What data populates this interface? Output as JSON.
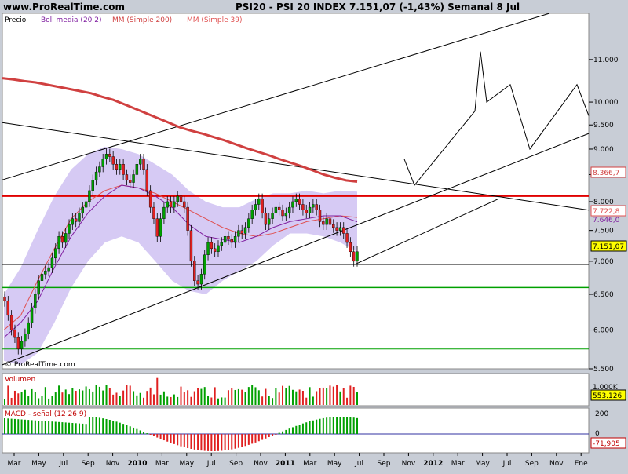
{
  "site_header": "www.ProRealTime.com",
  "title": "PSI20 - PSI 20 INDEX    7.151,07 (-1,43%)    Semanal  8 Jul",
  "legend": {
    "price": "Precio",
    "boll": "Boll media (20 2)",
    "ma200": "MM (Simple 200)",
    "ma39": "MM (Simple 39)"
  },
  "watermark": "© ProRealTime.com",
  "price_tags": {
    "ma200": "8.366,7",
    "ma39": "7.722,8",
    "boll_mid": "7.646,0",
    "last": "7.151,07"
  },
  "volume": {
    "label": "Volumen",
    "axis_label": "1.000K",
    "last": "553.126"
  },
  "macd": {
    "label": "MACD - señal (12 26 9)",
    "axis_top": "200",
    "axis_zero": "0",
    "last": "-71,905"
  },
  "y_ticks": [
    "11.000",
    "10.000",
    "9.500",
    "9.000",
    "8.500",
    "8.000",
    "7.500",
    "7.000",
    "6.500",
    "6.000",
    "5.500"
  ],
  "x_ticks": [
    "Mar",
    "May",
    "Jul",
    "Sep",
    "Nov",
    "2010",
    "Mar",
    "May",
    "Jul",
    "Sep",
    "Nov",
    "2011",
    "Mar",
    "May",
    "Jul",
    "Sep",
    "Nov",
    "2012",
    "Mar",
    "May",
    "Jul",
    "Sep",
    "Nov",
    "Ene"
  ],
  "colors": {
    "up": "#00a000",
    "down": "#e02020",
    "ma200": "#d04040",
    "ma39": "#e05050",
    "boll_mid": "#8020a0",
    "boll_band": "#c8b8f0",
    "support": "#00a000",
    "resistance": "#e00000",
    "background": "#ffffff",
    "frame": "#c8cdd6"
  },
  "chart_data": {
    "type": "candlestick",
    "timeframe": "weekly",
    "price_scale": "log",
    "ylim": [
      5500,
      12200
    ],
    "x_range": [
      "2009-02",
      "2013-02"
    ],
    "last_close": 7151.07,
    "change_pct": -1.43,
    "horizontal_levels": [
      8100,
      6950,
      6600,
      5750
    ],
    "closes": [
      6400,
      6200,
      6000,
      5900,
      5750,
      5850,
      5950,
      6100,
      6300,
      6500,
      6700,
      6800,
      6850,
      6900,
      7050,
      7200,
      7400,
      7300,
      7450,
      7600,
      7700,
      7650,
      7800,
      7900,
      8000,
      8200,
      8400,
      8550,
      8650,
      8800,
      8900,
      8850,
      8700,
      8600,
      8700,
      8500,
      8400,
      8350,
      8500,
      8700,
      8800,
      8600,
      8200,
      7900,
      7700,
      7400,
      7700,
      7900,
      8000,
      7900,
      8000,
      8100,
      8000,
      7900,
      7500,
      7000,
      6700,
      6650,
      6800,
      7100,
      7300,
      7200,
      7150,
      7250,
      7300,
      7400,
      7350,
      7300,
      7400,
      7500,
      7450,
      7550,
      7700,
      7850,
      7950,
      8050,
      7800,
      7600,
      7700,
      7800,
      7900,
      7850,
      7750,
      7800,
      7900,
      8000,
      8050,
      7950,
      7850,
      7800,
      7900,
      7950,
      7850,
      7650,
      7600,
      7700,
      7600,
      7550,
      7500,
      7550,
      7450,
      7300,
      7150,
      7000,
      7151
    ],
    "series_ma200": [
      10550,
      10520,
      10480,
      10450,
      10400,
      10350,
      10300,
      10250,
      10200,
      10120,
      10050,
      9950,
      9850,
      9750,
      9650,
      9550,
      9450,
      9380,
      9320,
      9250,
      9180,
      9100,
      9020,
      8950,
      8880,
      8800,
      8730,
      8660,
      8580,
      8500,
      8440,
      8390,
      8366.7
    ],
    "series_ma39": [
      6000,
      6200,
      6700,
      7200,
      7700,
      8000,
      8200,
      8300,
      8250,
      8150,
      8000,
      7850,
      7700,
      7550,
      7450,
      7400,
      7450,
      7550,
      7650,
      7700,
      7750,
      7722.8
    ],
    "series_boll_mid": [
      5900,
      6100,
      6400,
      6900,
      7400,
      7800,
      8100,
      8300,
      8250,
      8100,
      7900,
      7600,
      7400,
      7350,
      7300,
      7400,
      7550,
      7650,
      7700,
      7750,
      7750,
      7646
    ],
    "series_boll_upper": [
      6500,
      6900,
      7500,
      8100,
      8600,
      8900,
      9050,
      9000,
      8900,
      8700,
      8500,
      8200,
      8000,
      7900,
      7900,
      8050,
      8150,
      8150,
      8200,
      8150,
      8200,
      8180
    ],
    "series_boll_lower": [
      5600,
      5550,
      5700,
      6100,
      6600,
      7000,
      7300,
      7400,
      7300,
      7000,
      6700,
      6550,
      6500,
      6700,
      6850,
      7000,
      7250,
      7450,
      7450,
      7400,
      7300,
      7150
    ],
    "projection": [
      [
        8800,
        null
      ],
      [
        8300,
        null
      ],
      [
        9800,
        null
      ],
      [
        11200,
        null
      ],
      [
        10000,
        null
      ],
      [
        10400,
        null
      ],
      [
        9000,
        null
      ],
      [
        10400,
        null
      ],
      [
        9700,
        null
      ]
    ],
    "volume_last": 553126,
    "macd_last": -71.905
  }
}
